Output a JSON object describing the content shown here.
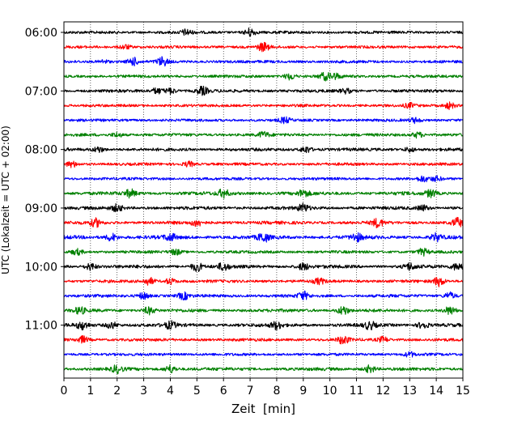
{
  "chart_data": {
    "type": "line",
    "chart_kind": "helicorder / seismogram drum plot",
    "xlabel": "Zeit  [min]",
    "ylabel": "UTC (Lokalzeit = UTC + 02:00)",
    "xlim": [
      0,
      15
    ],
    "x_ticks": [
      "0",
      "1",
      "2",
      "3",
      "4",
      "5",
      "6",
      "7",
      "8",
      "9",
      "10",
      "11",
      "12",
      "13",
      "14",
      "15"
    ],
    "y_ticks": [
      "06:00",
      "07:00",
      "08:00",
      "09:00",
      "10:00",
      "11:00"
    ],
    "trace_interval_min": 15,
    "grid": {
      "x": true,
      "style": "dotted"
    },
    "colors_cycle": [
      "#000000",
      "#ff0000",
      "#0000ff",
      "#008000"
    ],
    "traces": [
      {
        "start": "06:00",
        "color": "#000000",
        "activity": 0.35,
        "events": [
          [
            4.6,
            1.0
          ],
          [
            7.0,
            1.5
          ]
        ]
      },
      {
        "start": "06:15",
        "color": "#ff0000",
        "activity": 0.3,
        "events": [
          [
            7.5,
            1.6
          ],
          [
            2.3,
            0.8
          ]
        ]
      },
      {
        "start": "06:30",
        "color": "#0000ff",
        "activity": 0.35,
        "events": [
          [
            2.6,
            1.4
          ],
          [
            3.7,
            1.6
          ],
          [
            1.5,
            0.6
          ]
        ]
      },
      {
        "start": "06:45",
        "color": "#008000",
        "activity": 0.35,
        "events": [
          [
            8.5,
            1.2
          ],
          [
            9.8,
            1.3
          ],
          [
            10.2,
            1.0
          ]
        ]
      },
      {
        "start": "07:00",
        "color": "#000000",
        "activity": 0.45,
        "events": [
          [
            5.2,
            1.5
          ],
          [
            4.0,
            1.0
          ],
          [
            3.5,
            1.0
          ],
          [
            10.6,
            0.8
          ]
        ]
      },
      {
        "start": "07:15",
        "color": "#ff0000",
        "activity": 0.3,
        "events": [
          [
            14.5,
            1.2
          ],
          [
            13.0,
            0.8
          ]
        ]
      },
      {
        "start": "07:30",
        "color": "#0000ff",
        "activity": 0.3,
        "events": [
          [
            8.3,
            1.0
          ],
          [
            13.2,
            0.9
          ]
        ]
      },
      {
        "start": "07:45",
        "color": "#008000",
        "activity": 0.4,
        "events": [
          [
            7.5,
            1.0
          ],
          [
            13.3,
            1.0
          ],
          [
            2.0,
            0.8
          ]
        ]
      },
      {
        "start": "08:00",
        "color": "#000000",
        "activity": 0.45,
        "events": [
          [
            9.1,
            1.2
          ],
          [
            1.3,
            1.0
          ],
          [
            13.0,
            0.8
          ]
        ]
      },
      {
        "start": "08:15",
        "color": "#ff0000",
        "activity": 0.35,
        "events": [
          [
            0.3,
            1.0
          ],
          [
            4.7,
            0.9
          ]
        ]
      },
      {
        "start": "08:30",
        "color": "#0000ff",
        "activity": 0.3,
        "events": [
          [
            13.5,
            1.0
          ],
          [
            14.0,
            0.8
          ]
        ]
      },
      {
        "start": "08:45",
        "color": "#008000",
        "activity": 0.65,
        "events": [
          [
            2.5,
            1.3
          ],
          [
            6.0,
            1.4
          ],
          [
            9.0,
            1.2
          ],
          [
            13.8,
            1.3
          ]
        ]
      },
      {
        "start": "09:00",
        "color": "#000000",
        "activity": 0.55,
        "events": [
          [
            2.0,
            1.2
          ],
          [
            9.0,
            1.4
          ],
          [
            13.5,
            1.0
          ]
        ]
      },
      {
        "start": "09:15",
        "color": "#ff0000",
        "activity": 0.55,
        "events": [
          [
            1.2,
            1.4
          ],
          [
            5.0,
            1.2
          ],
          [
            11.8,
            1.5
          ],
          [
            14.8,
            1.6
          ]
        ]
      },
      {
        "start": "09:30",
        "color": "#0000ff",
        "activity": 0.7,
        "events": [
          [
            1.8,
            1.4
          ],
          [
            4.0,
            1.3
          ],
          [
            7.5,
            1.6
          ],
          [
            11.0,
            1.4
          ],
          [
            14.0,
            1.3
          ]
        ]
      },
      {
        "start": "09:45",
        "color": "#008000",
        "activity": 0.35,
        "events": [
          [
            0.5,
            1.0
          ],
          [
            4.2,
            1.0
          ],
          [
            13.5,
            1.2
          ]
        ]
      },
      {
        "start": "10:00",
        "color": "#000000",
        "activity": 0.6,
        "events": [
          [
            1.0,
            1.2
          ],
          [
            5.0,
            1.6
          ],
          [
            6.0,
            1.3
          ],
          [
            9.0,
            1.2
          ],
          [
            13.0,
            1.2
          ],
          [
            14.8,
            1.3
          ]
        ]
      },
      {
        "start": "10:15",
        "color": "#ff0000",
        "activity": 0.4,
        "events": [
          [
            3.2,
            1.3
          ],
          [
            4.0,
            1.0
          ],
          [
            14.1,
            1.7
          ],
          [
            9.6,
            1.0
          ]
        ]
      },
      {
        "start": "10:30",
        "color": "#0000ff",
        "activity": 0.45,
        "events": [
          [
            3.0,
            1.2
          ],
          [
            4.5,
            1.2
          ],
          [
            9.0,
            1.4
          ],
          [
            14.5,
            1.2
          ]
        ]
      },
      {
        "start": "10:45",
        "color": "#008000",
        "activity": 0.5,
        "events": [
          [
            0.6,
            1.2
          ],
          [
            3.2,
            1.3
          ],
          [
            10.5,
            1.6
          ],
          [
            14.5,
            1.4
          ]
        ]
      },
      {
        "start": "11:00",
        "color": "#000000",
        "activity": 0.65,
        "events": [
          [
            0.7,
            1.4
          ],
          [
            1.8,
            1.2
          ],
          [
            4.0,
            1.2
          ],
          [
            8.0,
            1.3
          ],
          [
            11.5,
            1.3
          ],
          [
            13.5,
            1.2
          ]
        ]
      },
      {
        "start": "11:15",
        "color": "#ff0000",
        "activity": 0.4,
        "events": [
          [
            0.7,
            1.2
          ],
          [
            10.5,
            1.5
          ],
          [
            12.0,
            1.0
          ]
        ]
      },
      {
        "start": "11:30",
        "color": "#0000ff",
        "activity": 0.3,
        "events": [
          [
            13.0,
            0.8
          ]
        ]
      },
      {
        "start": "11:45",
        "color": "#008000",
        "activity": 0.5,
        "events": [
          [
            2.0,
            1.3
          ],
          [
            4.0,
            1.4
          ],
          [
            11.5,
            1.3
          ]
        ]
      }
    ]
  }
}
